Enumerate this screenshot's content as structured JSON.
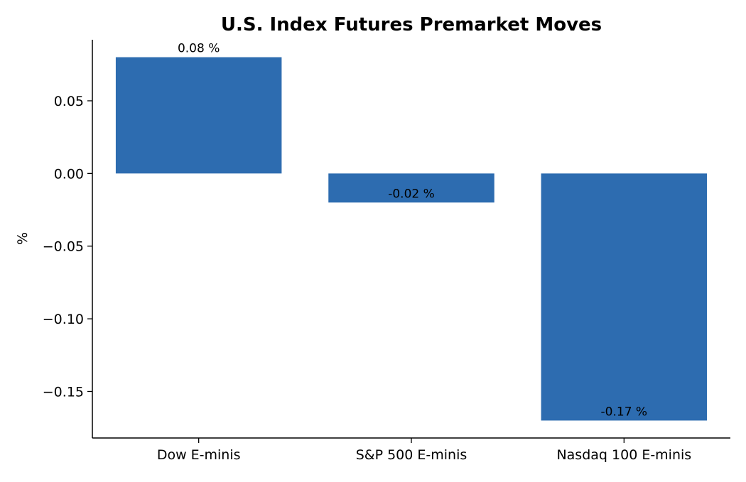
{
  "chart_data": {
    "type": "bar",
    "title": "U.S. Index Futures Premarket Moves",
    "xlabel": "",
    "ylabel": "%",
    "categories": [
      "Dow E-minis",
      "S&P 500 E-minis",
      "Nasdaq 100 E-minis"
    ],
    "values": [
      0.08,
      -0.02,
      -0.17
    ],
    "data_labels": [
      "0.08 %",
      "-0.02 %",
      "-0.17 %"
    ],
    "yticks": [
      0.05,
      0.0,
      -0.05,
      -0.1,
      -0.15
    ],
    "ytick_labels": [
      "0.05",
      "0.00",
      "−0.05",
      "−0.10",
      "−0.15"
    ],
    "ylim": [
      -0.182,
      0.092
    ],
    "grid": false,
    "legend": "none",
    "colors": {
      "bar": "#2d6cb0",
      "axis": "#000000",
      "text": "#000000"
    }
  }
}
